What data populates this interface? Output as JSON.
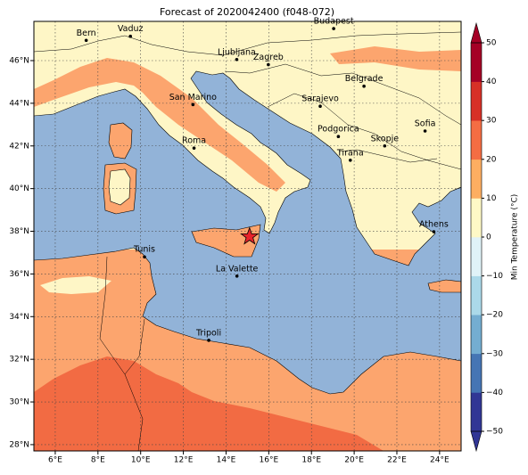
{
  "title": "Forecast of 2020042400 (f048-072)",
  "lon_ticks": [
    {
      "value": 6,
      "label": "6°E"
    },
    {
      "value": 8,
      "label": "8°E"
    },
    {
      "value": 10,
      "label": "10°E"
    },
    {
      "value": 12,
      "label": "12°E"
    },
    {
      "value": 14,
      "label": "14°E"
    },
    {
      "value": 16,
      "label": "16°E"
    },
    {
      "value": 18,
      "label": "18°E"
    },
    {
      "value": 20,
      "label": "20°E"
    },
    {
      "value": 22,
      "label": "22°E"
    },
    {
      "value": 24,
      "label": "24°E"
    }
  ],
  "lat_ticks": [
    {
      "value": 28,
      "label": "28°N"
    },
    {
      "value": 30,
      "label": "30°N"
    },
    {
      "value": 32,
      "label": "32°N"
    },
    {
      "value": 34,
      "label": "34°N"
    },
    {
      "value": 36,
      "label": "36°N"
    },
    {
      "value": 38,
      "label": "38°N"
    },
    {
      "value": 40,
      "label": "40°N"
    },
    {
      "value": 42,
      "label": "42°N"
    },
    {
      "value": 44,
      "label": "44°N"
    },
    {
      "value": 46,
      "label": "46°N"
    }
  ],
  "cities": [
    "Bern",
    "Vaduz",
    "Budapest",
    "Ljubljana",
    "Zagreb",
    "Belgrade",
    "San Marino",
    "Sarajevo",
    "Sofia",
    "Roma",
    "Podgorica",
    "Skopje",
    "Tirana",
    "Athens",
    "Tunis",
    "La Valette",
    "Tripoli"
  ],
  "colorbar": {
    "label": "Min Temperature (°C)",
    "ticks": [
      {
        "value": -50,
        "label": "−50"
      },
      {
        "value": -40,
        "label": "−40"
      },
      {
        "value": -30,
        "label": "−30"
      },
      {
        "value": -20,
        "label": "−20"
      },
      {
        "value": -10,
        "label": "−10"
      },
      0,
      10,
      20,
      30,
      40,
      50
    ],
    "colors": [
      "#313695",
      "#4575b4",
      "#74add1",
      "#abd9e9",
      "#e0f3f8",
      "#fef9c6",
      "#fdae61",
      "#f46d43",
      "#d73027",
      "#a50026"
    ]
  }
}
